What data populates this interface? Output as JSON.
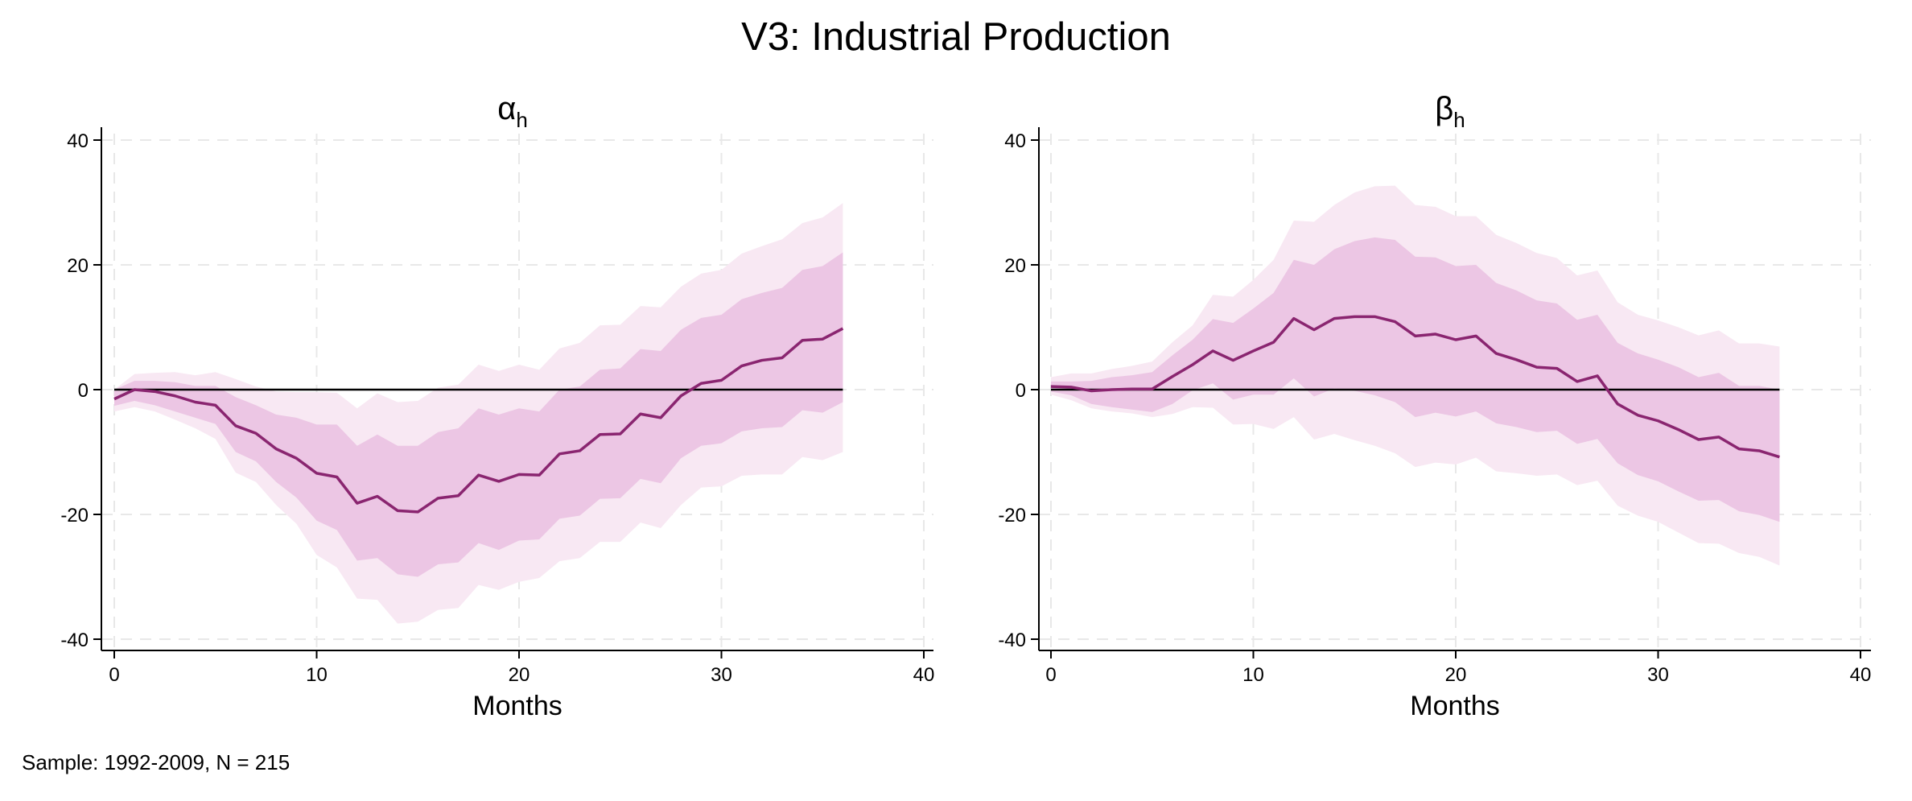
{
  "title": "V3: Industrial Production",
  "footnote": "Sample: 1992-2009, N = 215",
  "colors": {
    "line": "#8a2570",
    "inner_band": "#ecc6e4",
    "outer_band": "#f8e8f3",
    "zero_line": "#000000",
    "grid": "#e8e8e8"
  },
  "chart_data": [
    {
      "type": "line",
      "title": "α",
      "title_sub": "h",
      "xlabel": "Months",
      "ylabel": "",
      "xlim": [
        0,
        40
      ],
      "ylim": [
        -40,
        40
      ],
      "xticks": [
        "0",
        "10",
        "20",
        "30",
        "40"
      ],
      "yticks": [
        "-40",
        "-20",
        "0",
        "20",
        "40"
      ],
      "grid": true,
      "x": [
        0,
        1,
        2,
        3,
        4,
        5,
        6,
        7,
        8,
        9,
        10,
        11,
        12,
        13,
        14,
        15,
        16,
        17,
        18,
        19,
        20,
        21,
        22,
        23,
        24,
        25,
        26,
        27,
        28,
        29,
        30,
        31,
        32,
        33,
        34,
        35,
        36
      ],
      "estimate": [
        -1.5,
        0,
        -0.3,
        -1,
        -2,
        -2.5,
        -5.8,
        -7,
        -9.5,
        -11,
        -13.4,
        -14,
        -18.2,
        -17.1,
        -19.4,
        -19.6,
        -17.4,
        -17,
        -13.7,
        -14.7,
        -13.6,
        -13.7,
        -10.3,
        -9.8,
        -7.2,
        -7.1,
        -3.9,
        -4.5,
        -1,
        1,
        1.5,
        3.8,
        4.7,
        5.1,
        7.9,
        8.1,
        9.8
      ],
      "inner_upper": [
        0,
        1.4,
        1.4,
        1.2,
        0.6,
        0.6,
        -1.2,
        -2.5,
        -4,
        -4.5,
        -5.6,
        -5.6,
        -9,
        -7.2,
        -9,
        -9,
        -6.8,
        -6.2,
        -3,
        -4,
        -3,
        -3.5,
        0,
        0.5,
        3.2,
        3.4,
        6.5,
        6.2,
        9.6,
        11.5,
        12,
        14.5,
        15.5,
        16.3,
        19.2,
        19.8,
        22
      ],
      "inner_lower": [
        -2.6,
        -1.8,
        -2.5,
        -3.5,
        -4.5,
        -5.5,
        -10,
        -11.5,
        -14.8,
        -17.3,
        -21,
        -22.5,
        -27.4,
        -27,
        -29.6,
        -30,
        -28,
        -27.7,
        -24.6,
        -25.7,
        -24.2,
        -24,
        -20.7,
        -20.2,
        -17.5,
        -17.4,
        -14.3,
        -15,
        -11,
        -9,
        -8.6,
        -6.7,
        -6.2,
        -6,
        -3.3,
        -3.7,
        -2
      ],
      "outer_upper": [
        0,
        2.5,
        2.7,
        2.8,
        2.3,
        2.8,
        1.7,
        0.5,
        -0.3,
        -0.4,
        -0.4,
        -0.5,
        -3,
        -0.6,
        -2,
        -1.8,
        0.3,
        0.8,
        4,
        3,
        4,
        3.2,
        6.6,
        7.5,
        10.3,
        10.4,
        13.4,
        13.2,
        16.5,
        18.6,
        19.2,
        21.8,
        23,
        24.1,
        26.7,
        27.6,
        29.9
      ],
      "outer_lower": [
        -3.5,
        -2.8,
        -3.5,
        -4.8,
        -6.2,
        -7.9,
        -13.3,
        -14.8,
        -18.5,
        -21.5,
        -26.5,
        -28.5,
        -33.5,
        -33.7,
        -37.5,
        -37.2,
        -35.3,
        -35,
        -31.3,
        -32.1,
        -30.8,
        -30.2,
        -27.5,
        -27,
        -24.4,
        -24.4,
        -21.3,
        -22.2,
        -18.5,
        -15.7,
        -15.5,
        -13.8,
        -13.6,
        -13.6,
        -10.8,
        -11.3,
        -10
      ]
    },
    {
      "type": "line",
      "title": "β",
      "title_sub": "h",
      "xlabel": "Months",
      "ylabel": "",
      "xlim": [
        0,
        40
      ],
      "ylim": [
        -40,
        40
      ],
      "xticks": [
        "0",
        "10",
        "20",
        "30",
        "40"
      ],
      "yticks": [
        "-40",
        "-20",
        "0",
        "20",
        "40"
      ],
      "grid": true,
      "x": [
        0,
        1,
        2,
        3,
        4,
        5,
        6,
        7,
        8,
        9,
        10,
        11,
        12,
        13,
        14,
        15,
        16,
        17,
        18,
        19,
        20,
        21,
        22,
        23,
        24,
        25,
        26,
        27,
        28,
        29,
        30,
        31,
        32,
        33,
        34,
        35,
        36
      ],
      "estimate": [
        0.5,
        0.4,
        -0.2,
        0,
        0.1,
        0.1,
        2.1,
        4,
        6.2,
        4.7,
        6.2,
        7.6,
        11.4,
        9.6,
        11.4,
        11.7,
        11.7,
        10.9,
        8.6,
        8.9,
        8,
        8.6,
        5.8,
        4.8,
        3.6,
        3.4,
        1.3,
        2.2,
        -2.3,
        -4.1,
        -5,
        -6.4,
        -8,
        -7.6,
        -9.5,
        -9.8,
        -10.8
      ],
      "inner_upper": [
        1.3,
        1.3,
        1.4,
        2,
        2.3,
        2.8,
        5.5,
        8,
        11.3,
        10.7,
        13,
        15.5,
        20.8,
        20,
        22.5,
        23.8,
        24.4,
        24,
        21.3,
        21.2,
        19.8,
        20,
        17.1,
        15.9,
        14.3,
        13.8,
        11.2,
        12,
        7.5,
        5.8,
        4.8,
        3.6,
        2,
        2.7,
        0.6,
        0.6,
        0
      ],
      "inner_lower": [
        -0.3,
        -0.9,
        -2.3,
        -2.8,
        -3.2,
        -3.6,
        -2.3,
        -0.1,
        1,
        -1.6,
        -0.8,
        -0.8,
        1.8,
        -1.1,
        0.2,
        -0.2,
        -0.9,
        -2,
        -4.4,
        -3.7,
        -4.3,
        -3.5,
        -5.4,
        -6,
        -6.8,
        -6.6,
        -8.7,
        -7.9,
        -11.8,
        -13.7,
        -14.7,
        -16.3,
        -17.8,
        -17.7,
        -19.5,
        -20.1,
        -21.2
      ],
      "outer_upper": [
        2,
        2.6,
        2.6,
        3.3,
        3.8,
        4.5,
        7.6,
        10.3,
        15.2,
        14.9,
        17.6,
        20.8,
        27.1,
        26.9,
        29.6,
        31.6,
        32.6,
        32.7,
        29.6,
        29.3,
        27.8,
        27.8,
        24.8,
        23.5,
        21.9,
        21.1,
        18.3,
        19.1,
        14,
        12,
        11.1,
        10,
        8.7,
        9.5,
        7.4,
        7.4,
        6.9
      ],
      "outer_lower": [
        -0.8,
        -1.7,
        -3,
        -3.5,
        -3.8,
        -4.4,
        -3.9,
        -2.8,
        -2.9,
        -5.6,
        -5.5,
        -6.3,
        -4.4,
        -8,
        -7.1,
        -8.1,
        -9,
        -10.2,
        -12.4,
        -11.7,
        -12,
        -10.9,
        -13.1,
        -13.4,
        -13.8,
        -13.6,
        -15.3,
        -14.6,
        -18.6,
        -20.2,
        -21.2,
        -22.9,
        -24.6,
        -24.7,
        -26.2,
        -26.8,
        -28.2
      ]
    }
  ]
}
